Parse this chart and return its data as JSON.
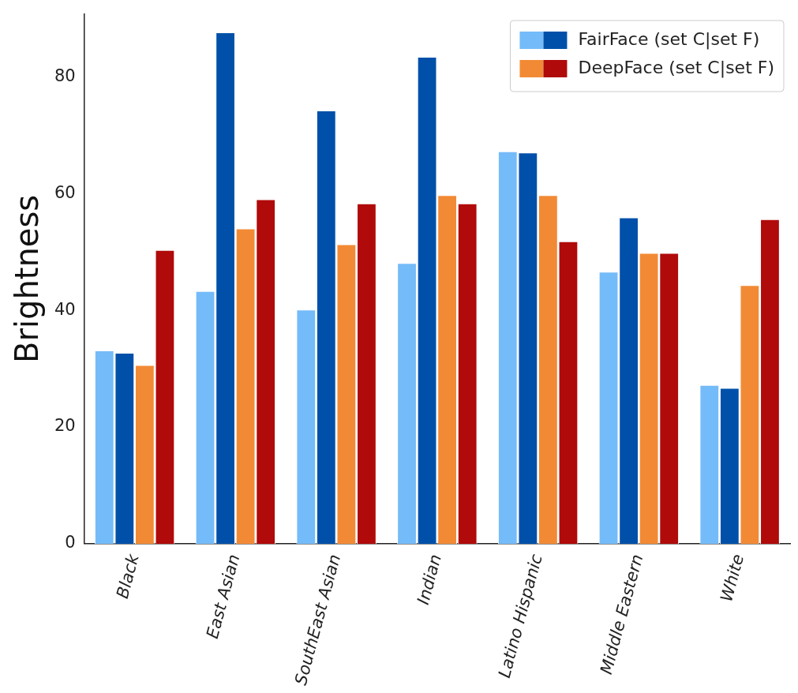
{
  "chart_data": {
    "type": "bar",
    "ylabel": "Brightness",
    "categories": [
      "Black",
      "East Asian",
      "SouthEast Asian",
      "Indian",
      "Latino Hispanic",
      "Middle Eastern",
      "White"
    ],
    "series": [
      {
        "name": "FairFace (set C|set F)",
        "color": "#74bbf9",
        "values": [
          33.1,
          43.3,
          40.1,
          48.1,
          67.2,
          46.6,
          27.2
        ]
      },
      {
        "color": "#0050aa",
        "values": [
          32.7,
          87.6,
          74.2,
          83.4,
          67.0,
          55.9,
          26.7
        ]
      },
      {
        "name": "DeepFace (set C|set F)",
        "color": "#f28a35",
        "values": [
          30.6,
          54.0,
          51.3,
          59.7,
          59.7,
          49.8,
          44.3
        ]
      },
      {
        "color": "#b00a0a",
        "values": [
          50.3,
          59.0,
          58.3,
          58.3,
          51.8,
          49.8,
          55.6
        ]
      }
    ],
    "ylim": [
      0,
      90.7
    ],
    "yticks": [
      0,
      20,
      40,
      60,
      80
    ],
    "grid": false,
    "legend": "top right"
  }
}
